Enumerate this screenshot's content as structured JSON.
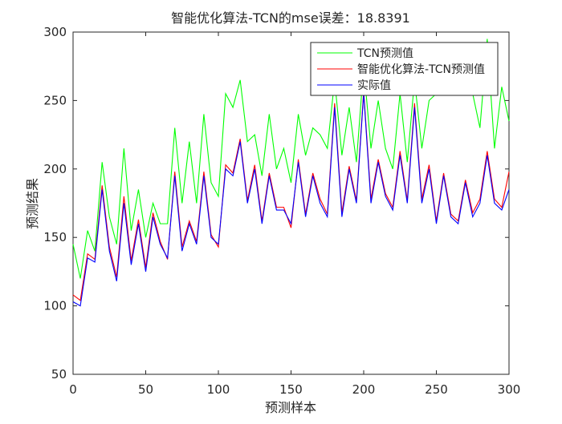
{
  "chart_data": {
    "type": "line",
    "title": "智能优化算法-TCN的mse误差：18.8391",
    "x_label": "预测样本",
    "y_label": "预测结果",
    "x": [
      0,
      5,
      10,
      15,
      20,
      25,
      30,
      35,
      40,
      45,
      50,
      55,
      60,
      65,
      70,
      75,
      80,
      85,
      90,
      95,
      100,
      105,
      110,
      115,
      120,
      125,
      130,
      135,
      140,
      145,
      150,
      155,
      160,
      165,
      170,
      175,
      180,
      185,
      190,
      195,
      200,
      205,
      210,
      215,
      220,
      225,
      230,
      235,
      240,
      245,
      250,
      255,
      260,
      265,
      270,
      275,
      280,
      285,
      290,
      295,
      300
    ],
    "series": [
      {
        "name": "TCN预测值",
        "color": "#00ff00",
        "values": [
          145,
          120,
          155,
          140,
          205,
          165,
          145,
          215,
          155,
          185,
          150,
          175,
          160,
          160,
          230,
          175,
          220,
          175,
          240,
          190,
          180,
          255,
          245,
          265,
          220,
          225,
          195,
          240,
          200,
          215,
          190,
          240,
          210,
          230,
          225,
          215,
          265,
          210,
          245,
          205,
          275,
          215,
          250,
          215,
          200,
          255,
          205,
          265,
          215,
          250,
          255,
          270,
          280,
          255,
          265,
          255,
          230,
          295,
          215,
          260,
          235
        ]
      },
      {
        "name": "智能优化算法-TCN预测值",
        "color": "#ff0000",
        "values": [
          108,
          104,
          138,
          134,
          188,
          143,
          121,
          180,
          133,
          163,
          128,
          168,
          147,
          134,
          198,
          143,
          162,
          147,
          198,
          152,
          143,
          203,
          197,
          222,
          177,
          203,
          162,
          197,
          172,
          172,
          157,
          207,
          167,
          197,
          178,
          167,
          248,
          168,
          202,
          177,
          257,
          178,
          207,
          182,
          172,
          213,
          177,
          248,
          178,
          203,
          162,
          197,
          167,
          162,
          192,
          168,
          178,
          213,
          178,
          172,
          198
        ]
      },
      {
        "name": "实际值",
        "color": "#0000ff",
        "values": [
          103,
          100,
          135,
          132,
          185,
          140,
          118,
          175,
          130,
          160,
          125,
          165,
          145,
          135,
          195,
          140,
          160,
          145,
          195,
          150,
          145,
          200,
          195,
          220,
          175,
          200,
          160,
          195,
          170,
          170,
          160,
          205,
          165,
          195,
          175,
          165,
          245,
          165,
          200,
          175,
          255,
          175,
          205,
          180,
          170,
          210,
          175,
          245,
          175,
          200,
          160,
          195,
          165,
          160,
          190,
          165,
          175,
          210,
          175,
          170,
          185
        ]
      }
    ],
    "xlim": [
      0,
      300
    ],
    "xticks": [
      0,
      50,
      100,
      150,
      200,
      250,
      300
    ],
    "ylim": [
      50,
      300
    ],
    "yticks": [
      50,
      100,
      150,
      200,
      250,
      300
    ],
    "grid": false,
    "legend_position": "top-right"
  }
}
